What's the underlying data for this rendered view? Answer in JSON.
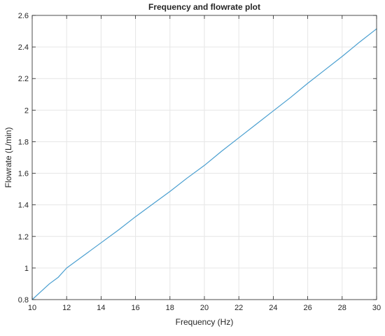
{
  "chart_data": {
    "type": "line",
    "title": "Frequency and flowrate plot",
    "xlabel": "Frequency (Hz)",
    "ylabel": "Flowrate (L/min)",
    "xlim": [
      10,
      30
    ],
    "ylim": [
      0.8,
      2.6
    ],
    "xticks": [
      10,
      12,
      14,
      16,
      18,
      20,
      22,
      24,
      26,
      28,
      30
    ],
    "yticks": [
      0.8,
      1,
      1.2,
      1.4,
      1.6,
      1.8,
      2,
      2.2,
      2.4,
      2.6
    ],
    "xtick_labels": [
      "10",
      "12",
      "14",
      "16",
      "18",
      "20",
      "22",
      "24",
      "26",
      "28",
      "30"
    ],
    "ytick_labels": [
      "0.8",
      "1",
      "1.2",
      "1.4",
      "1.6",
      "1.8",
      "2",
      "2.2",
      "2.4",
      "2.6"
    ],
    "grid": true,
    "colors": {
      "series": "#4a9fd0",
      "grid": "#e6e6e6",
      "axes": "#262626"
    },
    "series": [
      {
        "x": [
          10,
          10.5,
          11,
          11.5,
          12,
          13,
          14,
          15,
          16,
          17,
          18,
          19,
          20,
          21,
          22,
          23,
          24,
          25,
          26,
          27,
          28,
          29,
          30
        ],
        "y": [
          0.8,
          0.85,
          0.9,
          0.94,
          1.0,
          1.08,
          1.16,
          1.24,
          1.325,
          1.405,
          1.485,
          1.57,
          1.65,
          1.74,
          1.825,
          1.91,
          1.995,
          2.08,
          2.17,
          2.255,
          2.34,
          2.43,
          2.515
        ]
      }
    ]
  }
}
